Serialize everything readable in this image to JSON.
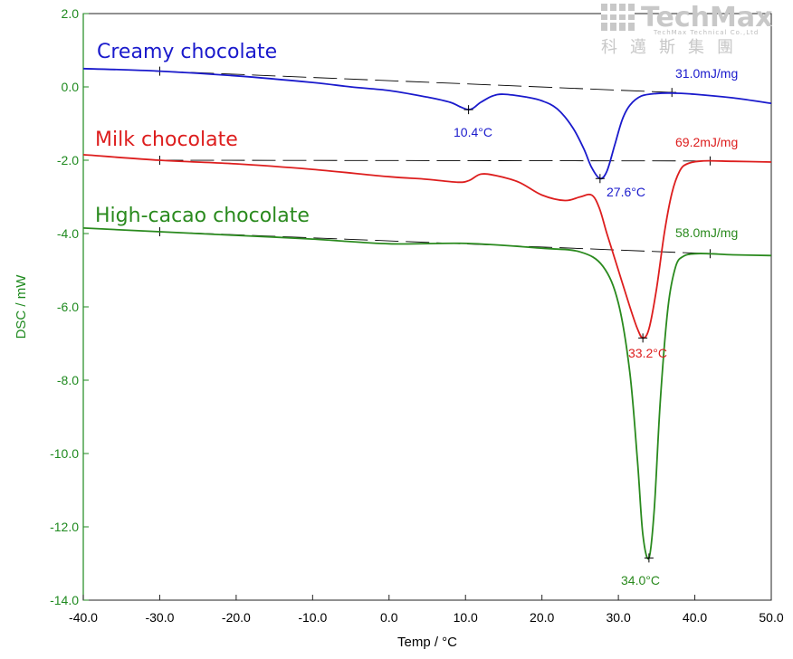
{
  "chart_data": {
    "type": "line",
    "xlabel": "Temp / °C",
    "ylabel": "DSC / mW",
    "xlim": [
      -40,
      50
    ],
    "ylim": [
      -14,
      2
    ],
    "xticks": [
      -40,
      -30,
      -20,
      -10,
      0,
      10,
      20,
      30,
      40,
      50
    ],
    "xtick_labels": [
      "-40.0",
      "-30.0",
      "-20.0",
      "-10.0",
      "0.0",
      "10.0",
      "20.0",
      "30.0",
      "40.0",
      "50.0"
    ],
    "yticks": [
      2,
      0,
      -2,
      -4,
      -6,
      -8,
      -10,
      -12,
      -14
    ],
    "ytick_labels": [
      "2.0",
      "0.0",
      "-2.0",
      "-4.0",
      "-6.0",
      "-8.0",
      "-10.0",
      "-12.0",
      "-14.0"
    ],
    "grid": false,
    "series": [
      {
        "name": "Creamy chocolate",
        "color": "#1a1acc",
        "x": [
          -40,
          -30,
          -20,
          -10,
          -5,
          0,
          5,
          8,
          10.4,
          12,
          13.5,
          15,
          18,
          20,
          22,
          24,
          25.5,
          26.5,
          27.6,
          28.5,
          29.5,
          30.5,
          31.5,
          33,
          35,
          37,
          40,
          45,
          50
        ],
        "y": [
          0.5,
          0.43,
          0.3,
          0.12,
          0.0,
          -0.1,
          -0.28,
          -0.42,
          -0.62,
          -0.42,
          -0.25,
          -0.2,
          -0.28,
          -0.38,
          -0.6,
          -1.1,
          -1.7,
          -2.2,
          -2.5,
          -2.3,
          -1.6,
          -0.9,
          -0.5,
          -0.25,
          -0.18,
          -0.17,
          -0.2,
          -0.3,
          -0.45
        ]
      },
      {
        "name": "Milk chocolate",
        "color": "#dd1e1e",
        "x": [
          -40,
          -30,
          -20,
          -10,
          0,
          5,
          9,
          10.5,
          12,
          14,
          17,
          20,
          23,
          25,
          26.5,
          27.5,
          28.5,
          30,
          31.5,
          32.5,
          33.2,
          34,
          35,
          36,
          37,
          38,
          39,
          41,
          45,
          50
        ],
        "y": [
          -1.85,
          -2.0,
          -2.1,
          -2.25,
          -2.45,
          -2.52,
          -2.6,
          -2.55,
          -2.38,
          -2.42,
          -2.6,
          -2.95,
          -3.1,
          -3.0,
          -2.95,
          -3.3,
          -4.0,
          -5.0,
          -6.0,
          -6.6,
          -6.85,
          -6.6,
          -5.5,
          -4.0,
          -2.9,
          -2.3,
          -2.1,
          -2.02,
          -2.03,
          -2.05
        ]
      },
      {
        "name": "High-cacao chocolate",
        "color": "#2a8a1e",
        "x": [
          -40,
          -30,
          -20,
          -10,
          0,
          10,
          20,
          25,
          28,
          30,
          31.5,
          32.5,
          33.2,
          34,
          34.7,
          35.5,
          36.5,
          37.5,
          38.5,
          40,
          42,
          45,
          50
        ],
        "y": [
          -3.85,
          -3.95,
          -4.05,
          -4.15,
          -4.28,
          -4.27,
          -4.4,
          -4.5,
          -4.9,
          -5.9,
          -7.8,
          -10.2,
          -12.2,
          -12.85,
          -11.5,
          -8.5,
          -6.0,
          -4.9,
          -4.62,
          -4.55,
          -4.55,
          -4.58,
          -4.6
        ]
      }
    ],
    "baselines": [
      {
        "color": "#000000",
        "x": [
          -30,
          37
        ],
        "y": [
          0.43,
          -0.15
        ]
      },
      {
        "color": "#000000",
        "x": [
          -30,
          42
        ],
        "y": [
          -2.0,
          -2.02
        ]
      },
      {
        "color": "#000000",
        "x": [
          -30,
          42
        ],
        "y": [
          -3.95,
          -4.55
        ]
      }
    ],
    "peak_markers": [
      {
        "color": "#1a1acc",
        "x": 10.4,
        "y": -0.62
      },
      {
        "color": "#1a1acc",
        "x": 27.6,
        "y": -2.5
      },
      {
        "color": "#dd1e1e",
        "x": 33.2,
        "y": -6.85
      },
      {
        "color": "#2a8a1e",
        "x": 34.0,
        "y": -12.85
      }
    ],
    "annotations": {
      "creamy_peak1": "10.4°C",
      "creamy_peak2": "27.6°C",
      "creamy_enthalpy": "31.0mJ/mg",
      "milk_peak": "33.2°C",
      "milk_enthalpy": "69.2mJ/mg",
      "highcacao_peak": "34.0°C",
      "highcacao_enthalpy": "58.0mJ/mg"
    }
  },
  "logo": {
    "name": "TechMax",
    "subtitle": "TechMax Technical Co.,Ltd",
    "chinese": "科邁斯集團",
    "color": "#c8c8c8"
  }
}
